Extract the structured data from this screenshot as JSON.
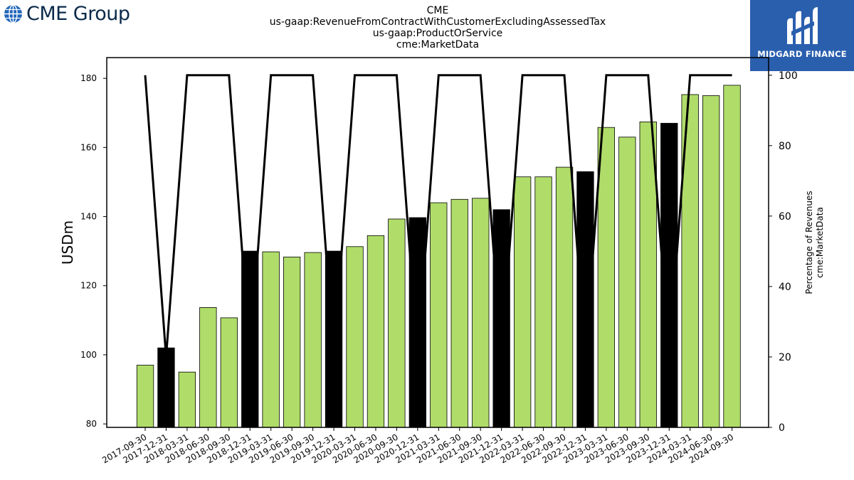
{
  "header": {
    "logo_text": "CME Group",
    "title_lines": [
      "CME",
      "us-gaap:RevenueFromContractWithCustomerExcludingAssessedTax",
      "us-gaap:ProductOrService",
      "cme:MarketData"
    ]
  },
  "watermark": {
    "text": "MIDGARD FINANCE",
    "bg_color": "#2a5fae"
  },
  "chart_data": {
    "type": "bar",
    "categories": [
      "2017-09-30",
      "2017-12-31",
      "2018-03-31",
      "2018-06-30",
      "2018-09-30",
      "2018-12-31",
      "2019-03-31",
      "2019-06-30",
      "2019-09-30",
      "2019-12-31",
      "2020-03-31",
      "2020-06-30",
      "2020-09-30",
      "2020-12-31",
      "2021-03-31",
      "2021-06-30",
      "2021-09-30",
      "2021-12-31",
      "2022-03-31",
      "2022-06-30",
      "2022-09-30",
      "2022-12-31",
      "2023-03-31",
      "2023-06-30",
      "2023-09-30",
      "2023-12-31",
      "2024-03-31",
      "2024-06-30",
      "2024-09-30"
    ],
    "series": [
      {
        "name": "",
        "axis": "left",
        "type": "bar",
        "values": [
          97,
          102,
          95,
          113.7,
          110.7,
          130,
          129.8,
          128.3,
          129.6,
          130,
          131.3,
          134.5,
          139.3,
          139.7,
          144,
          145,
          145.3,
          142,
          151.5,
          151.5,
          154.3,
          153,
          165.8,
          163,
          167.4,
          167,
          175.3,
          175,
          178
        ]
      },
      {
        "name": "",
        "axis": "right",
        "type": "line",
        "values": [
          100,
          20,
          100,
          100,
          100,
          20,
          100,
          100,
          100,
          20,
          100,
          100,
          100,
          20,
          100,
          100,
          100,
          20,
          100,
          100,
          100,
          20,
          100,
          100,
          100,
          20,
          100,
          100,
          100
        ]
      }
    ],
    "bar_colors": {
      "quarter": "#b0dc6a",
      "year_end": "#000000"
    },
    "year_end_flags": [
      false,
      true,
      false,
      false,
      false,
      true,
      false,
      false,
      false,
      true,
      false,
      false,
      false,
      true,
      false,
      false,
      false,
      true,
      false,
      false,
      false,
      true,
      false,
      false,
      false,
      true,
      false,
      false,
      false
    ],
    "ylabel": "USDm",
    "ylim": [
      79,
      186
    ],
    "yticks": [
      80,
      100,
      120,
      140,
      160,
      180
    ],
    "y2label_lines": [
      "Percentage of Revenues",
      "cme:MarketData"
    ],
    "y2lim": [
      0,
      105
    ],
    "y2ticks": [
      0,
      20,
      40,
      60,
      80,
      100
    ],
    "grid": false
  }
}
